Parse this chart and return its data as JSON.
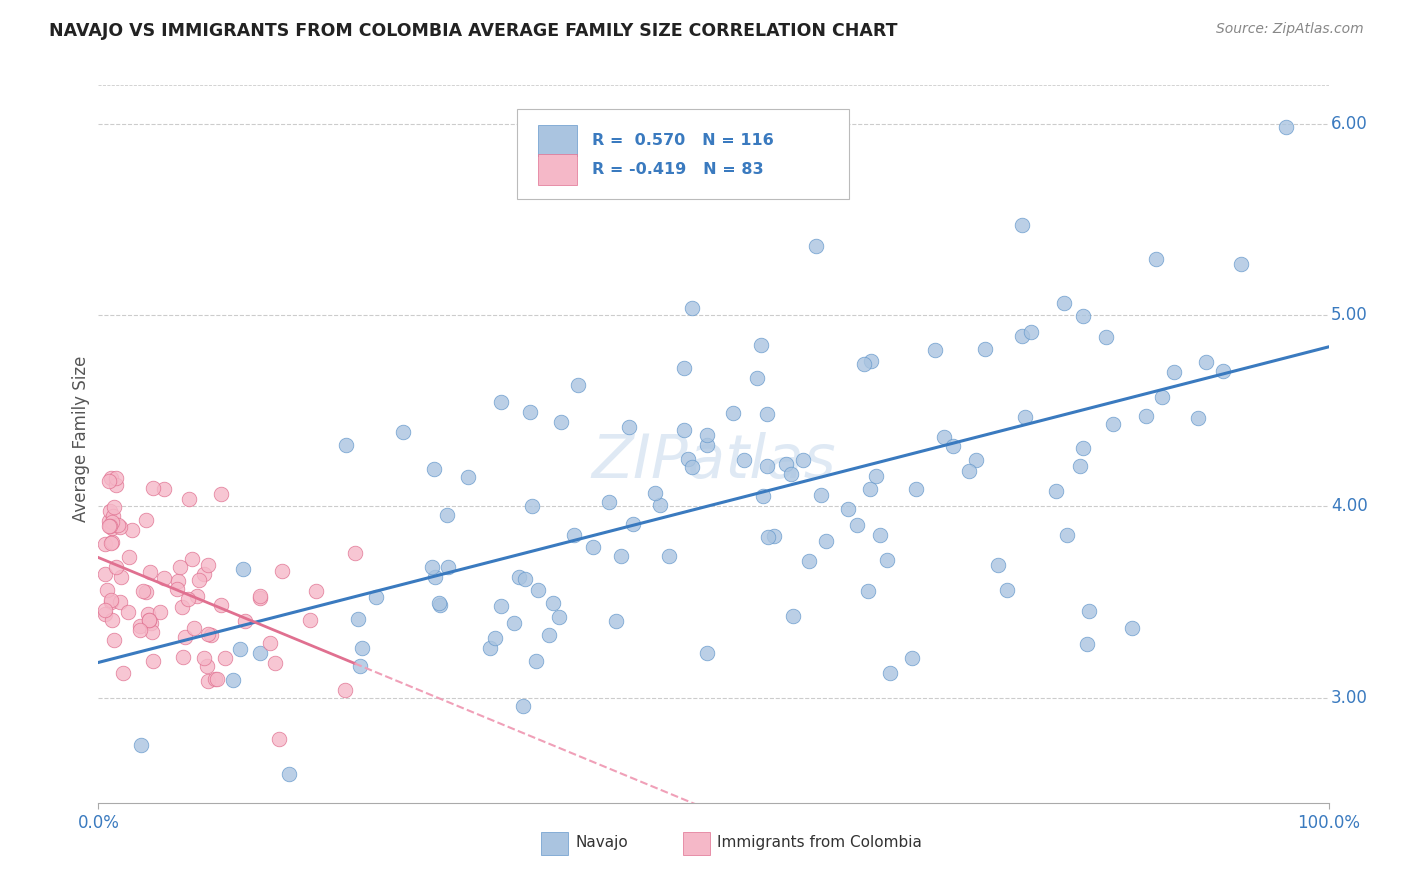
{
  "title": "NAVAJO VS IMMIGRANTS FROM COLOMBIA AVERAGE FAMILY SIZE CORRELATION CHART",
  "source": "Source: ZipAtlas.com",
  "ylabel": "Average Family Size",
  "xlim": [
    0,
    1
  ],
  "ylim": [
    2.45,
    6.25
  ],
  "yticks": [
    3.0,
    4.0,
    5.0,
    6.0
  ],
  "xticks": [
    0.0,
    1.0
  ],
  "xtick_labels": [
    "0.0%",
    "100.0%"
  ],
  "ytick_labels": [
    "3.00",
    "4.00",
    "5.00",
    "6.00"
  ],
  "navajo_color": "#aac4e0",
  "navajo_edge_color": "#6699cc",
  "colombia_color": "#f5b8c8",
  "colombia_edge_color": "#e07090",
  "navajo_line_color": "#3a7abf",
  "colombia_line_color": "#e07090",
  "colombia_line_color_dashed": "#f0a0b8",
  "navajo_R": 0.57,
  "navajo_N": 116,
  "colombia_R": -0.419,
  "colombia_N": 83,
  "watermark": "ZIPatlas",
  "background_color": "#ffffff",
  "grid_color": "#cccccc",
  "title_color": "#222222",
  "axis_label_color": "#555555",
  "tick_value_color": "#3a7abf",
  "navajo_seed": 42,
  "colombia_seed": 77
}
